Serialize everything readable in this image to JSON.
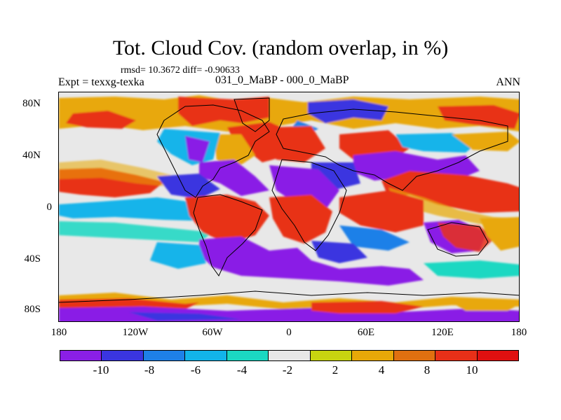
{
  "title": "Tot. Cloud Cov. (random overlap, in %)",
  "stats": "rmsd= 10.3672 diff= -0.90633",
  "expt": "Expt = texxg-texka",
  "period": "031_0_MaBP - 000_0_MaBP",
  "season": "ANN",
  "y_axis_labels": [
    "80N",
    "40N",
    "0",
    "40S",
    "80S"
  ],
  "x_axis_labels": [
    "180",
    "120W",
    "60W",
    "0",
    "60E",
    "120E",
    "180"
  ],
  "colorbar": {
    "colors": [
      "#8a1fe6",
      "#3a35e0",
      "#1e80e8",
      "#12b4ea",
      "#1bd8c2",
      "#e8e8e8",
      "#c8d410",
      "#e8a808",
      "#e07010",
      "#e83018",
      "#e01010"
    ],
    "labels": [
      "-10",
      "-8",
      "-6",
      "-4",
      "-2",
      "2",
      "4",
      "8",
      "10"
    ]
  },
  "map_colors": {
    "neutral": "#e8e8e8",
    "purple": "#8a1fe6",
    "blue": "#3a35e0",
    "midblue": "#1e80e8",
    "cyan": "#12b4ea",
    "teal": "#1bd8c2",
    "yellow": "#c8d410",
    "orange": "#e8a808",
    "darkorange": "#e07010",
    "red": "#e83018",
    "crimson": "#e01010"
  }
}
